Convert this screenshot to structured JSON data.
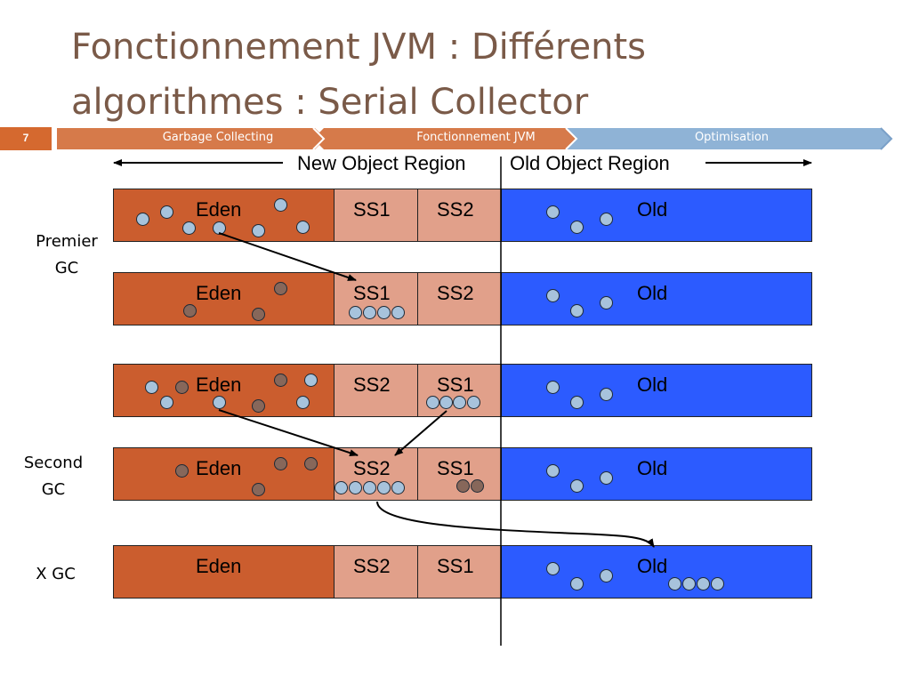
{
  "slide": {
    "title_line1": "Fonctionnement JVM : Différents",
    "title_line2": "algorithmes : Serial Collector",
    "number": "7"
  },
  "nav": {
    "items": [
      {
        "label": "Garbage Collecting",
        "color": "#d67a4a"
      },
      {
        "label": "Fonctionnement JVM",
        "color": "#d67a4a"
      },
      {
        "label": "Optimisation",
        "color": "#8fb3d6"
      }
    ]
  },
  "regions": {
    "new": "New Object Region",
    "old": "Old Object Region"
  },
  "side_labels": {
    "first": [
      "Premier",
      "GC"
    ],
    "second": [
      "Second",
      "GC"
    ],
    "x": "X GC"
  },
  "rows": [
    {
      "labels": [
        "Eden",
        "SS1",
        "SS2",
        "Old"
      ]
    },
    {
      "labels": [
        "Eden",
        "SS1",
        "SS2",
        "Old"
      ]
    },
    {
      "labels": [
        "Eden",
        "SS2",
        "SS1",
        "Old"
      ]
    },
    {
      "labels": [
        "Eden",
        "SS2",
        "SS1",
        "Old"
      ]
    },
    {
      "labels": [
        "Eden",
        "SS2",
        "SS1",
        "Old"
      ]
    }
  ],
  "colors": {
    "eden": "#cb5d2e",
    "survivor": "#e1a08a",
    "old": "#2c5bff",
    "live_object": "#a7c3dc",
    "dead_object": "#87675a",
    "title": "#7a5a48"
  }
}
